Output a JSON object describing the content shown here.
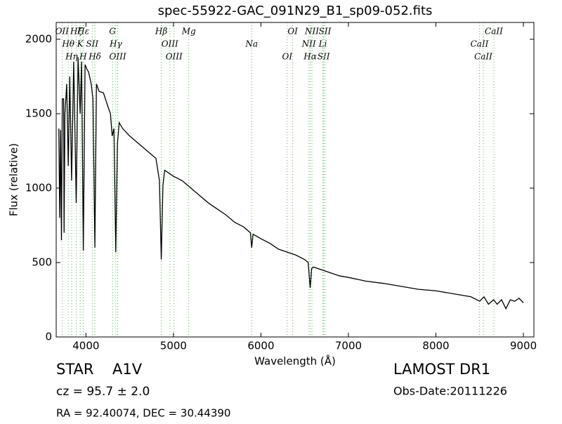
{
  "chart_data": {
    "type": "line",
    "title": "spec-55922-GAC_091N29_B1_sp09-052.fits",
    "x_label": "Wavelength (Å)",
    "y_label": "Flux (relative)",
    "xlim": [
      3660,
      9120
    ],
    "ylim": [
      0,
      2113
    ],
    "xticks": [
      4000,
      5000,
      6000,
      7000,
      8000,
      9000
    ],
    "yticks": [
      0,
      500,
      1000,
      1500,
      2000
    ],
    "x": [
      3690,
      3700,
      3710,
      3720,
      3730,
      3745,
      3750,
      3760,
      3780,
      3798,
      3815,
      3836,
      3860,
      3889,
      3910,
      3934,
      3950,
      3970,
      3990,
      4010,
      4030,
      4060,
      4080,
      4102,
      4120,
      4150,
      4200,
      4250,
      4280,
      4300,
      4320,
      4341,
      4360,
      4380,
      4420,
      4500,
      4600,
      4700,
      4800,
      4840,
      4861,
      4880,
      4900,
      5000,
      5100,
      5200,
      5300,
      5400,
      5500,
      5600,
      5700,
      5800,
      5880,
      5894,
      5910,
      6000,
      6100,
      6200,
      6300,
      6400,
      6500,
      6540,
      6563,
      6580,
      6600,
      6700,
      6800,
      6900,
      7000,
      7200,
      7400,
      7600,
      7800,
      8000,
      8200,
      8400,
      8500,
      8550,
      8600,
      8660,
      8700,
      8750,
      8800,
      8850,
      8900,
      8950,
      9000
    ],
    "series": [
      {
        "color": "#000000",
        "values": [
          1400,
          800,
          1390,
          650,
          1600,
          1600,
          700,
          1500,
          1700,
          1150,
          1750,
          1050,
          1850,
          900,
          1880,
          1500,
          1850,
          580,
          1830,
          1800,
          1780,
          1700,
          1600,
          600,
          1700,
          1650,
          1640,
          1550,
          1500,
          1350,
          1400,
          570,
          1300,
          1440,
          1400,
          1350,
          1300,
          1250,
          1200,
          1050,
          520,
          1020,
          1120,
          1080,
          1050,
          1000,
          950,
          900,
          860,
          820,
          770,
          740,
          700,
          600,
          690,
          660,
          630,
          590,
          570,
          550,
          520,
          500,
          330,
          460,
          470,
          450,
          430,
          410,
          400,
          375,
          360,
          340,
          320,
          310,
          290,
          270,
          240,
          270,
          220,
          250,
          220,
          250,
          190,
          250,
          240,
          260,
          230
        ]
      }
    ],
    "line_color": "#55bb55",
    "lines": [
      {
        "label": "OII",
        "wavelength": 3727
      },
      {
        "label": "Hθ",
        "wavelength": 3798
      },
      {
        "label": "Hη",
        "wavelength": 3836
      },
      {
        "label": "Hζ",
        "wavelength": 3889
      },
      {
        "label": "K",
        "wavelength": 3934
      },
      {
        "label": "H",
        "wavelength": 3968
      },
      {
        "label": "Hε",
        "wavelength": 3970
      },
      {
        "label": "SII",
        "wavelength": 4072
      },
      {
        "label": "Hδ",
        "wavelength": 4102
      },
      {
        "label": "G",
        "wavelength": 4304
      },
      {
        "label": "Hγ",
        "wavelength": 4341
      },
      {
        "label": "OIII",
        "wavelength": 4363
      },
      {
        "label": "Hβ",
        "wavelength": 4861
      },
      {
        "label": "OIII",
        "wavelength": 4959
      },
      {
        "label": "OIII",
        "wavelength": 5007
      },
      {
        "label": "Mg",
        "wavelength": 5175
      },
      {
        "label": "Na",
        "wavelength": 5894
      },
      {
        "label": "OI",
        "wavelength": 6300
      },
      {
        "label": "OI",
        "wavelength": 6363
      },
      {
        "label": "NII",
        "wavelength": 6548
      },
      {
        "label": "Hα",
        "wavelength": 6563
      },
      {
        "label": "NII",
        "wavelength": 6583
      },
      {
        "label": "Li",
        "wavelength": 6707
      },
      {
        "label": "SII",
        "wavelength": 6716
      },
      {
        "label": "SII",
        "wavelength": 6731
      },
      {
        "label": "CaII",
        "wavelength": 8498
      },
      {
        "label": "CaII",
        "wavelength": 8542
      },
      {
        "label": "CaII",
        "wavelength": 8662
      }
    ],
    "annotations": {
      "class": "STAR",
      "subclass": "A1V",
      "cz": "cz = 95.7 ± 2.0",
      "coords": "RA = 92.40074, DEC = 30.44390",
      "survey": "LAMOST DR1",
      "date": "Obs-Date:20111226"
    }
  }
}
